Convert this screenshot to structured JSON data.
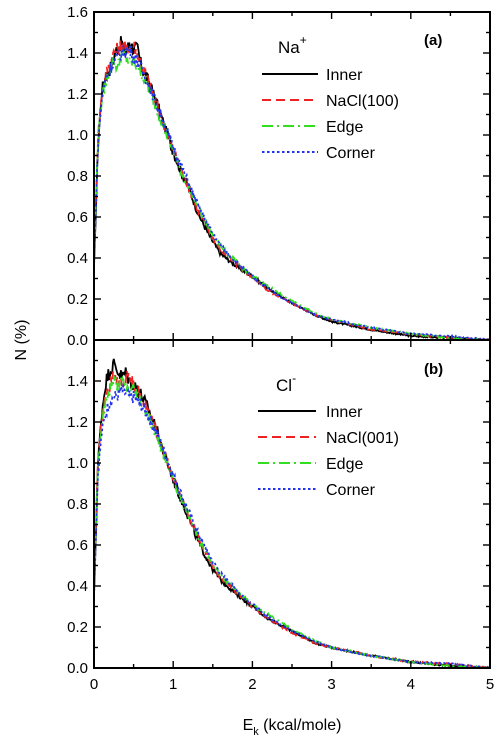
{
  "chart_data": [
    {
      "type": "line",
      "panel_label": "(a)",
      "ion_label": "Na",
      "ion_charge": "+",
      "xlabel": "",
      "ylabel": "N (%)",
      "xlim": [
        0,
        5
      ],
      "ylim": [
        0,
        1.6
      ],
      "xticks": [],
      "yticks": [
        "0.0",
        "0.2",
        "0.4",
        "0.6",
        "0.8",
        "1.0",
        "1.2",
        "1.4",
        "1.6"
      ],
      "legend_position": "top-right",
      "series": [
        {
          "name": "Inner",
          "color": "#000000",
          "dash": "solid",
          "x": [
            0,
            0.05,
            0.1,
            0.15,
            0.2,
            0.25,
            0.3,
            0.35,
            0.4,
            0.45,
            0.5,
            0.55,
            0.6,
            0.7,
            0.8,
            0.9,
            1.0,
            1.1,
            1.2,
            1.3,
            1.4,
            1.5,
            1.6,
            1.8,
            2.0,
            2.2,
            2.5,
            2.8,
            3.0,
            3.5,
            4.0,
            4.5,
            5.0
          ],
          "y": [
            0.35,
            0.95,
            1.22,
            1.29,
            1.32,
            1.38,
            1.43,
            1.45,
            1.4,
            1.45,
            1.42,
            1.42,
            1.33,
            1.25,
            1.15,
            1.03,
            0.92,
            0.82,
            0.74,
            0.63,
            0.55,
            0.48,
            0.42,
            0.36,
            0.31,
            0.25,
            0.18,
            0.12,
            0.09,
            0.05,
            0.02,
            0.01,
            0.0
          ]
        },
        {
          "name": "NaCl(100)",
          "color": "#ee2222",
          "dash": "dashed",
          "x": [
            0,
            0.05,
            0.1,
            0.15,
            0.2,
            0.25,
            0.3,
            0.35,
            0.4,
            0.45,
            0.5,
            0.55,
            0.6,
            0.7,
            0.8,
            0.9,
            1.0,
            1.1,
            1.2,
            1.3,
            1.4,
            1.5,
            1.6,
            1.8,
            2.0,
            2.2,
            2.5,
            2.8,
            3.0,
            3.5,
            4.0,
            4.5,
            5.0
          ],
          "y": [
            0.4,
            1.0,
            1.2,
            1.3,
            1.35,
            1.4,
            1.42,
            1.44,
            1.42,
            1.43,
            1.44,
            1.4,
            1.34,
            1.25,
            1.14,
            1.03,
            0.93,
            0.83,
            0.74,
            0.64,
            0.57,
            0.5,
            0.44,
            0.37,
            0.3,
            0.24,
            0.18,
            0.12,
            0.1,
            0.05,
            0.03,
            0.01,
            0.0
          ]
        },
        {
          "name": "Edge",
          "color": "#33dd22",
          "dash": "dashdot",
          "x": [
            0,
            0.05,
            0.1,
            0.15,
            0.2,
            0.25,
            0.3,
            0.35,
            0.4,
            0.45,
            0.5,
            0.55,
            0.6,
            0.7,
            0.8,
            0.9,
            1.0,
            1.1,
            1.2,
            1.3,
            1.4,
            1.5,
            1.6,
            1.8,
            2.0,
            2.2,
            2.5,
            2.8,
            3.0,
            3.5,
            4.0,
            4.5,
            5.0
          ],
          "y": [
            0.4,
            0.98,
            1.18,
            1.25,
            1.32,
            1.36,
            1.33,
            1.4,
            1.38,
            1.35,
            1.36,
            1.33,
            1.3,
            1.22,
            1.12,
            1.02,
            0.92,
            0.82,
            0.74,
            0.66,
            0.58,
            0.51,
            0.46,
            0.38,
            0.31,
            0.26,
            0.19,
            0.13,
            0.1,
            0.06,
            0.03,
            0.01,
            0.0
          ]
        },
        {
          "name": "Corner",
          "color": "#2233ee",
          "dash": "dotted",
          "x": [
            0,
            0.05,
            0.1,
            0.15,
            0.2,
            0.25,
            0.3,
            0.35,
            0.4,
            0.45,
            0.5,
            0.55,
            0.6,
            0.7,
            0.8,
            0.9,
            1.0,
            1.1,
            1.2,
            1.3,
            1.4,
            1.5,
            1.6,
            1.8,
            2.0,
            2.2,
            2.5,
            2.8,
            3.0,
            3.5,
            4.0,
            4.5,
            5.0
          ],
          "y": [
            0.38,
            0.95,
            1.18,
            1.28,
            1.32,
            1.36,
            1.38,
            1.4,
            1.41,
            1.42,
            1.38,
            1.36,
            1.32,
            1.24,
            1.14,
            1.04,
            0.94,
            0.85,
            0.76,
            0.67,
            0.59,
            0.52,
            0.46,
            0.38,
            0.31,
            0.25,
            0.18,
            0.12,
            0.1,
            0.06,
            0.03,
            0.02,
            0.0
          ]
        }
      ]
    },
    {
      "type": "line",
      "panel_label": "(b)",
      "ion_label": "Cl",
      "ion_charge": "-",
      "xlabel": "E",
      "xlabel_sub": "k",
      "xlabel_unit": " (kcal/mole)",
      "ylabel": "",
      "xlim": [
        0,
        5
      ],
      "ylim": [
        0,
        1.6
      ],
      "xticks": [
        "0",
        "1",
        "2",
        "3",
        "4",
        "5"
      ],
      "yticks": [
        "0.0",
        "0.2",
        "0.4",
        "0.6",
        "0.8",
        "1.0",
        "1.2",
        "1.4"
      ],
      "legend_position": "top-right",
      "series": [
        {
          "name": "Inner",
          "color": "#000000",
          "dash": "solid",
          "x": [
            0,
            0.05,
            0.1,
            0.15,
            0.2,
            0.25,
            0.3,
            0.35,
            0.4,
            0.45,
            0.5,
            0.55,
            0.6,
            0.7,
            0.8,
            0.9,
            1.0,
            1.1,
            1.2,
            1.3,
            1.4,
            1.5,
            1.6,
            1.8,
            2.0,
            2.2,
            2.5,
            2.8,
            3.0,
            3.5,
            4.0,
            4.5,
            5.0
          ],
          "y": [
            0.35,
            1.0,
            1.25,
            1.4,
            1.45,
            1.48,
            1.45,
            1.42,
            1.44,
            1.4,
            1.38,
            1.36,
            1.33,
            1.25,
            1.15,
            1.03,
            0.92,
            0.82,
            0.73,
            0.63,
            0.55,
            0.48,
            0.43,
            0.36,
            0.3,
            0.24,
            0.18,
            0.12,
            0.1,
            0.06,
            0.03,
            0.01,
            0.0
          ]
        },
        {
          "name": "NaCl(001)",
          "color": "#ee2222",
          "dash": "dashed",
          "x": [
            0,
            0.05,
            0.1,
            0.15,
            0.2,
            0.25,
            0.3,
            0.35,
            0.4,
            0.45,
            0.5,
            0.55,
            0.6,
            0.7,
            0.8,
            0.9,
            1.0,
            1.1,
            1.2,
            1.3,
            1.4,
            1.5,
            1.6,
            1.8,
            2.0,
            2.2,
            2.5,
            2.8,
            3.0,
            3.5,
            4.0,
            4.5,
            5.0
          ],
          "y": [
            0.4,
            1.02,
            1.22,
            1.32,
            1.38,
            1.42,
            1.4,
            1.38,
            1.42,
            1.44,
            1.38,
            1.36,
            1.32,
            1.24,
            1.14,
            1.03,
            0.93,
            0.83,
            0.74,
            0.65,
            0.57,
            0.5,
            0.44,
            0.37,
            0.3,
            0.24,
            0.17,
            0.12,
            0.1,
            0.06,
            0.03,
            0.02,
            0.0
          ]
        },
        {
          "name": "Edge",
          "color": "#33dd22",
          "dash": "dashdot",
          "x": [
            0,
            0.05,
            0.1,
            0.15,
            0.2,
            0.25,
            0.3,
            0.35,
            0.4,
            0.45,
            0.5,
            0.55,
            0.6,
            0.7,
            0.8,
            0.9,
            1.0,
            1.1,
            1.2,
            1.3,
            1.4,
            1.5,
            1.6,
            1.8,
            2.0,
            2.2,
            2.5,
            2.8,
            3.0,
            3.5,
            4.0,
            4.5,
            5.0
          ],
          "y": [
            0.4,
            1.0,
            1.2,
            1.3,
            1.36,
            1.4,
            1.38,
            1.39,
            1.37,
            1.35,
            1.36,
            1.34,
            1.3,
            1.22,
            1.12,
            1.02,
            0.92,
            0.82,
            0.74,
            0.65,
            0.57,
            0.5,
            0.45,
            0.38,
            0.31,
            0.26,
            0.19,
            0.13,
            0.1,
            0.06,
            0.03,
            0.01,
            0.0
          ]
        },
        {
          "name": "Corner",
          "color": "#2233ee",
          "dash": "dotted",
          "x": [
            0,
            0.05,
            0.1,
            0.15,
            0.2,
            0.25,
            0.3,
            0.35,
            0.4,
            0.45,
            0.5,
            0.55,
            0.6,
            0.7,
            0.8,
            0.9,
            1.0,
            1.1,
            1.2,
            1.3,
            1.4,
            1.5,
            1.6,
            1.8,
            2.0,
            2.2,
            2.5,
            2.8,
            3.0,
            3.5,
            4.0,
            4.5,
            5.0
          ],
          "y": [
            0.35,
            0.95,
            1.15,
            1.25,
            1.3,
            1.32,
            1.33,
            1.35,
            1.34,
            1.32,
            1.32,
            1.3,
            1.28,
            1.22,
            1.14,
            1.04,
            0.94,
            0.85,
            0.76,
            0.67,
            0.59,
            0.52,
            0.46,
            0.38,
            0.31,
            0.25,
            0.18,
            0.13,
            0.1,
            0.06,
            0.03,
            0.02,
            0.0
          ]
        }
      ]
    }
  ]
}
